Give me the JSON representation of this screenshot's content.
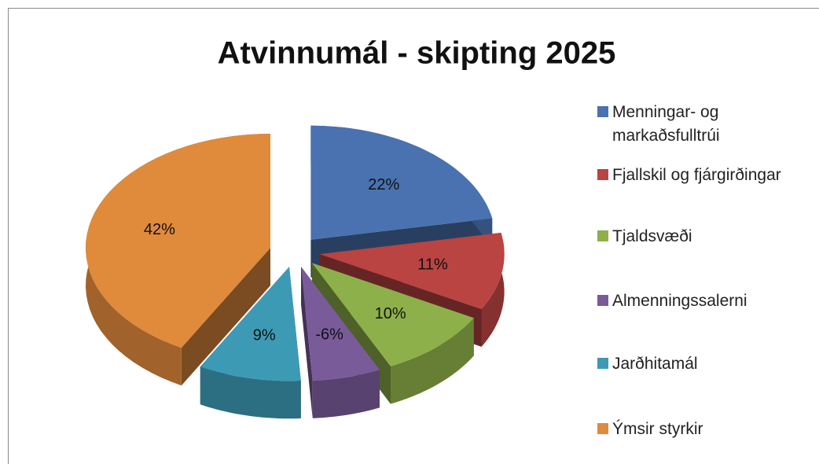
{
  "chart_data": {
    "type": "pie",
    "title": "Atvinnumál - skipting 2025",
    "categories": [
      "Menningar- og markaðsfulltrúi",
      "Fjallskil og fjárgirðingar",
      "Tjaldsvæði",
      "Almenningssalerni",
      "Jarðhitamál",
      "Ýmsir styrkir"
    ],
    "values": [
      22,
      11,
      10,
      -6,
      9,
      42
    ],
    "value_labels": [
      "22%",
      "11%",
      "10%",
      "-6%",
      "9%",
      "42%"
    ],
    "colors": [
      "#4a72b0",
      "#b94441",
      "#8eb04a",
      "#7a5b9a",
      "#3d9ab5",
      "#e08a3c"
    ],
    "legend": "right"
  }
}
